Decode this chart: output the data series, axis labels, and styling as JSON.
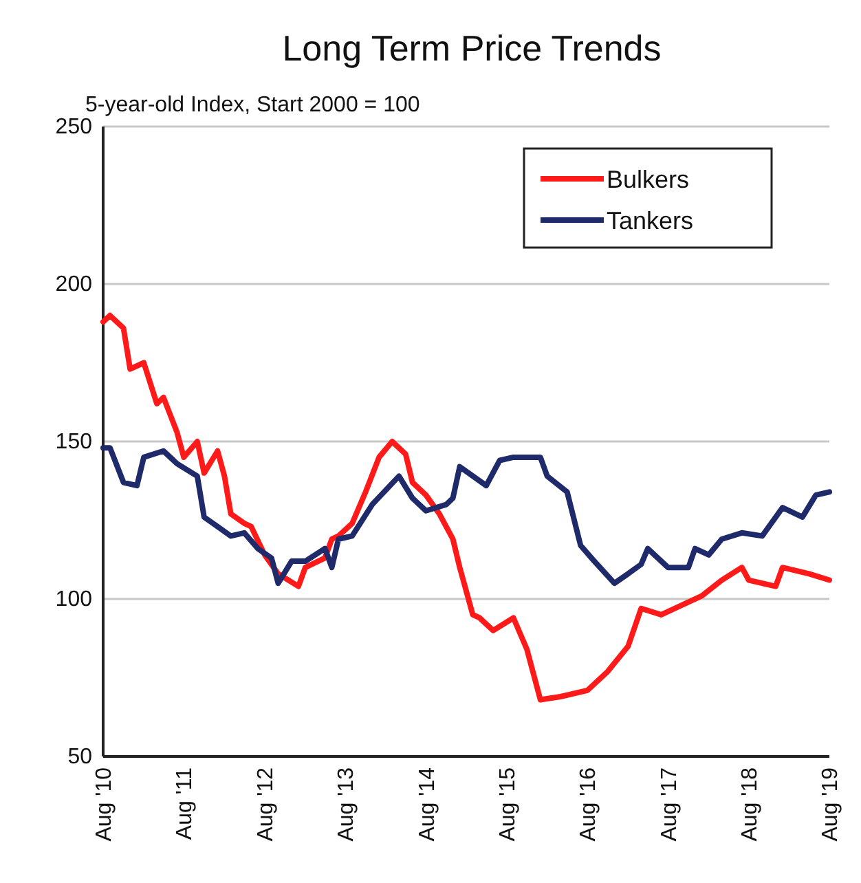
{
  "chart_data": {
    "type": "line",
    "title": "Long Term Price Trends",
    "subtitle": "5-year-old Index, Start 2000 = 100",
    "xlim": [
      "2010-08",
      "2019-08"
    ],
    "xticks": [
      {
        "value": "2010-08",
        "label": "Aug '10"
      },
      {
        "value": "2011-08",
        "label": "Aug '11"
      },
      {
        "value": "2012-08",
        "label": "Aug '12"
      },
      {
        "value": "2013-08",
        "label": "Aug '13"
      },
      {
        "value": "2014-08",
        "label": "Aug '14"
      },
      {
        "value": "2015-08",
        "label": "Aug '15"
      },
      {
        "value": "2016-08",
        "label": "Aug '16"
      },
      {
        "value": "2017-08",
        "label": "Aug '17"
      },
      {
        "value": "2018-08",
        "label": "Aug '18"
      },
      {
        "value": "2019-08",
        "label": "Aug '19"
      }
    ],
    "ylim": [
      50,
      250
    ],
    "yticks": [
      50,
      100,
      150,
      200,
      250
    ],
    "grid": "y",
    "legend": "top right",
    "line_style": "solid",
    "marker": "none",
    "series": [
      {
        "name": "Bulkers",
        "color": "#ff1a1a",
        "x": [
          "2010-08",
          "2010-09",
          "2010-11",
          "2010-12",
          "2011-02",
          "2011-04",
          "2011-05",
          "2011-07",
          "2011-08",
          "2011-10",
          "2011-11",
          "2012-01",
          "2012-02",
          "2012-03",
          "2012-05",
          "2012-06",
          "2012-08",
          "2012-10",
          "2013-01",
          "2013-02",
          "2013-05",
          "2013-06",
          "2013-07",
          "2013-09",
          "2013-11",
          "2014-01",
          "2014-03",
          "2014-05",
          "2014-06",
          "2014-08",
          "2014-10",
          "2014-12",
          "2015-01",
          "2015-03",
          "2015-04",
          "2015-06",
          "2015-09",
          "2015-11",
          "2016-01",
          "2016-04",
          "2016-08",
          "2016-11",
          "2017-02",
          "2017-04",
          "2017-07",
          "2017-10",
          "2018-01",
          "2018-04",
          "2018-07",
          "2018-08",
          "2018-12",
          "2019-01",
          "2019-05",
          "2019-08"
        ],
        "values": [
          188,
          190,
          186,
          173,
          175,
          162,
          164,
          153,
          145,
          150,
          140,
          147,
          139,
          127,
          124,
          123,
          114,
          108,
          104,
          110,
          113,
          119,
          120,
          124,
          134,
          145,
          150,
          146,
          137,
          133,
          127,
          119,
          110,
          95,
          94,
          90,
          94,
          84,
          68,
          69,
          71,
          77,
          85,
          97,
          95,
          98,
          101,
          106,
          110,
          106,
          104,
          110,
          108,
          106
        ]
      },
      {
        "name": "Tankers",
        "color": "#1f2a6b",
        "x": [
          "2010-08",
          "2010-09",
          "2010-11",
          "2011-01",
          "2011-02",
          "2011-05",
          "2011-07",
          "2011-10",
          "2011-11",
          "2012-01",
          "2012-03",
          "2012-05",
          "2012-07",
          "2012-09",
          "2012-10",
          "2012-12",
          "2013-02",
          "2013-05",
          "2013-06",
          "2013-07",
          "2013-09",
          "2013-12",
          "2014-04",
          "2014-06",
          "2014-08",
          "2014-11",
          "2014-12",
          "2015-01",
          "2015-05",
          "2015-07",
          "2015-09",
          "2016-01",
          "2016-02",
          "2016-05",
          "2016-07",
          "2016-09",
          "2016-12",
          "2017-02",
          "2017-04",
          "2017-05",
          "2017-08",
          "2017-11",
          "2017-12",
          "2018-02",
          "2018-04",
          "2018-07",
          "2018-10",
          "2019-01",
          "2019-04",
          "2019-06",
          "2019-08"
        ],
        "values": [
          148,
          148,
          137,
          136,
          145,
          147,
          143,
          139,
          126,
          123,
          120,
          121,
          116,
          113,
          105,
          112,
          112,
          116,
          110,
          119,
          120,
          130,
          139,
          132,
          128,
          130,
          132,
          142,
          136,
          144,
          145,
          145,
          139,
          134,
          117,
          112,
          105,
          108,
          111,
          116,
          110,
          110,
          116,
          114,
          119,
          121,
          120,
          129,
          126,
          133,
          134
        ]
      }
    ]
  }
}
